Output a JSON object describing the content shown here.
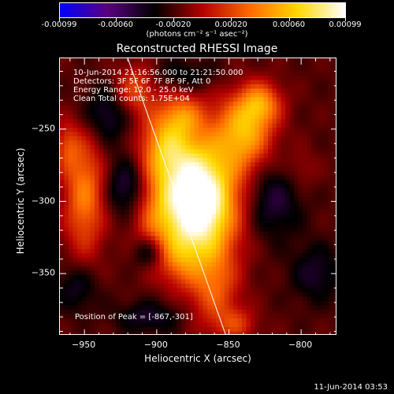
{
  "colorbar": {
    "labels": [
      "-0.00099",
      "-0.00060",
      "-0.00020",
      "0.00020",
      "0.00060",
      "0.00099"
    ],
    "values": [
      -0.00099,
      -0.0006,
      -0.0002,
      0.0002,
      0.0006,
      0.00099
    ],
    "units": "(photons cm⁻² s⁻¹ asec⁻²)",
    "colors": [
      "#0000ff",
      "#5a007f",
      "#000000",
      "#b40000",
      "#ff6a00",
      "#ffd800",
      "#ffffff"
    ]
  },
  "chart_data": {
    "type": "heatmap",
    "title": "Reconstructed RHESSI Image",
    "xlabel": "Heliocentric X (arcsec)",
    "ylabel": "Heliocentric Y (arcsec)",
    "xlim": [
      -967,
      -775
    ],
    "ylim": [
      -393,
      -201
    ],
    "xticks": [
      -950,
      -900,
      -850,
      -800
    ],
    "yticks": [
      -250,
      -300,
      -350
    ],
    "xtick_labels": [
      "−950",
      "−900",
      "−850",
      "−800"
    ],
    "ytick_labels": [
      "−250",
      "−300",
      "−350"
    ],
    "info_lines": [
      "10-Jun-2014 21:16:56.000 to 21:21:50.000",
      "Detectors: 3F 5F 6F 7F 8F 9F, Att 0",
      "Energy Range: 12.0 - 25.0 keV",
      "Clean     Total counts: 1.75E+04"
    ],
    "peak_text": "Position of Peak = [-867,-301]",
    "peak_position": [
      -867,
      -301
    ],
    "limb_line": [
      [
        -920,
        -201
      ],
      [
        -852,
        -393
      ]
    ],
    "sources": [
      {
        "x": -867,
        "y": -301,
        "sx": 18,
        "sy": 26,
        "amp": 0.00099
      },
      {
        "x": -876,
        "y": -295,
        "sx": 14,
        "sy": 34,
        "amp": 0.0005
      },
      {
        "x": -895,
        "y": -262,
        "sx": 12,
        "sy": 18,
        "amp": 0.0006
      },
      {
        "x": -915,
        "y": -223,
        "sx": 10,
        "sy": 12,
        "amp": 0.0004
      },
      {
        "x": -882,
        "y": -240,
        "sx": 10,
        "sy": 10,
        "amp": 0.00035
      },
      {
        "x": -840,
        "y": -252,
        "sx": 14,
        "sy": 18,
        "amp": 0.0007
      },
      {
        "x": -828,
        "y": -232,
        "sx": 10,
        "sy": 10,
        "amp": 0.0005
      },
      {
        "x": -950,
        "y": -295,
        "sx": 10,
        "sy": 30,
        "amp": 0.00055
      },
      {
        "x": -962,
        "y": -262,
        "sx": 6,
        "sy": 12,
        "amp": 0.0003
      },
      {
        "x": -860,
        "y": -360,
        "sx": 12,
        "sy": 20,
        "amp": 0.0004
      },
      {
        "x": -885,
        "y": -340,
        "sx": 10,
        "sy": 12,
        "amp": 0.00025
      },
      {
        "x": -845,
        "y": -385,
        "sx": 10,
        "sy": 8,
        "amp": 0.0003
      },
      {
        "x": -800,
        "y": -278,
        "sx": 8,
        "sy": 10,
        "amp": 0.00015
      },
      {
        "x": -900,
        "y": -310,
        "sx": 12,
        "sy": 22,
        "amp": 0.0004
      },
      {
        "x": -905,
        "y": -380,
        "sx": 16,
        "sy": 8,
        "amp": -0.00025
      },
      {
        "x": -920,
        "y": -290,
        "sx": 10,
        "sy": 14,
        "amp": -0.00035
      },
      {
        "x": -935,
        "y": -240,
        "sx": 12,
        "sy": 14,
        "amp": -0.0003
      },
      {
        "x": -820,
        "y": -300,
        "sx": 14,
        "sy": 18,
        "amp": -0.0003
      },
      {
        "x": -880,
        "y": -213,
        "sx": 16,
        "sy": 8,
        "amp": -0.0002
      },
      {
        "x": -905,
        "y": -335,
        "sx": 8,
        "sy": 8,
        "amp": -0.00035
      },
      {
        "x": -790,
        "y": -350,
        "sx": 12,
        "sy": 14,
        "amp": -0.00025
      },
      {
        "x": -955,
        "y": -360,
        "sx": 10,
        "sy": 12,
        "amp": -0.00025
      }
    ],
    "grid": false
  },
  "timestamp": "11-Jun-2014 03:53"
}
